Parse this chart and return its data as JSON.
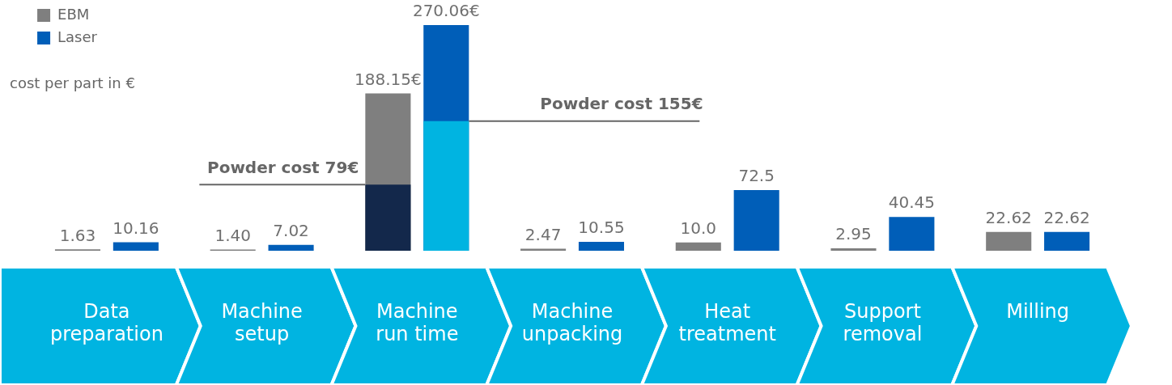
{
  "chart_data": {
    "type": "bar",
    "ylabel": "cost per part in €",
    "categories": [
      "Data preparation",
      "Machine setup",
      "Machine run time",
      "Machine unpacking",
      "Heat treatment",
      "Support removal",
      "Milling"
    ],
    "series": [
      {
        "name": "EBM",
        "color": "#7f7f7f",
        "values": [
          1.63,
          1.4,
          188.15,
          2.47,
          10.0,
          2.95,
          22.62
        ],
        "value_labels": [
          "1.63",
          "1.40",
          "188.15€",
          "2.47",
          "10.0",
          "2.95",
          "22.62"
        ]
      },
      {
        "color": "#13284b",
        "values": [
          null,
          null,
          79,
          null,
          null,
          null,
          null
        ]
      },
      {
        "name": "Laser",
        "color": "#005eb8",
        "values": [
          10.16,
          7.02,
          270.06,
          10.55,
          72.5,
          40.45,
          22.62
        ],
        "value_labels": [
          "10.16",
          "7.02",
          "270.06€",
          "10.55",
          "72.5",
          "40.45",
          "22.62"
        ]
      },
      {
        "color": "#00b4e1",
        "values": [
          null,
          null,
          155,
          null,
          null,
          null,
          null
        ]
      }
    ],
    "annotations": [
      "Powder cost 79€",
      "Powder cost 155€"
    ],
    "legend": "top left",
    "grid": false
  }
}
